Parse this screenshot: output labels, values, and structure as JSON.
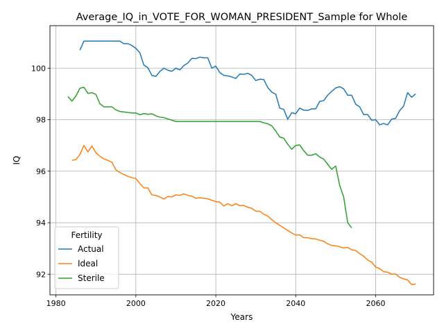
{
  "chart_data": {
    "type": "line",
    "title": "Average_IQ_in_VOTE_FOR_WOMAN_PRESIDENT_Sample for Whole",
    "xlabel": "Years",
    "ylabel": "IQ",
    "xlim": [
      1978.5,
      2074.5
    ],
    "ylim": [
      91.2,
      101.65
    ],
    "xticks": [
      1980,
      2000,
      2020,
      2040,
      2060
    ],
    "yticks": [
      92,
      94,
      96,
      98,
      100
    ],
    "grid": true,
    "legend": {
      "title": "Fertility",
      "position": "bottom-left"
    },
    "series": [
      {
        "name": "Actual",
        "color": "#1f77b4",
        "x": [
          1986,
          1987,
          1988,
          1989,
          1990,
          1991,
          1992,
          1993,
          1994,
          1995,
          1996,
          1997,
          1998,
          1999,
          2000,
          2001,
          2002,
          2003,
          2004,
          2005,
          2006,
          2007,
          2008,
          2009,
          2010,
          2011,
          2012,
          2013,
          2014,
          2015,
          2016,
          2017,
          2018,
          2019,
          2020,
          2021,
          2022,
          2023,
          2024,
          2025,
          2026,
          2027,
          2028,
          2029,
          2030,
          2031,
          2032,
          2033,
          2034,
          2035,
          2036,
          2037,
          2038,
          2039,
          2040,
          2041,
          2042,
          2043,
          2044,
          2045,
          2046,
          2047,
          2048,
          2049,
          2050,
          2051,
          2052,
          2053,
          2054,
          2055,
          2056,
          2057,
          2058,
          2059,
          2060,
          2061,
          2062,
          2063,
          2064,
          2065,
          2066,
          2067,
          2068,
          2069,
          2070
        ],
        "y": [
          100.7,
          101.05,
          101.05,
          101.05,
          101.05,
          101.05,
          101.05,
          101.05,
          101.05,
          101.05,
          101.05,
          100.95,
          100.95,
          100.88,
          100.77,
          100.6,
          100.12,
          100.02,
          99.72,
          99.68,
          99.87,
          100.0,
          99.92,
          99.88,
          100.0,
          99.93,
          100.1,
          100.2,
          100.38,
          100.37,
          100.43,
          100.4,
          100.4,
          100.0,
          100.08,
          99.83,
          99.72,
          99.7,
          99.66,
          99.6,
          99.77,
          99.76,
          99.8,
          99.72,
          99.52,
          99.57,
          99.56,
          99.25,
          99.07,
          98.99,
          98.45,
          98.4,
          98.02,
          98.27,
          98.23,
          98.45,
          98.37,
          98.36,
          98.42,
          98.42,
          98.71,
          98.74,
          98.95,
          99.1,
          99.23,
          99.28,
          99.2,
          98.95,
          98.95,
          98.6,
          98.5,
          98.2,
          98.2,
          97.98,
          98.0,
          97.8,
          97.85,
          97.8,
          98.02,
          98.05,
          98.35,
          98.53,
          99.05,
          98.87,
          99.0
        ]
      },
      {
        "name": "Ideal",
        "color": "#ff7f0e",
        "x": [
          1984,
          1985,
          1986,
          1987,
          1988,
          1989,
          1990,
          1991,
          1992,
          1993,
          1994,
          1995,
          1996,
          1997,
          1998,
          1999,
          2000,
          2001,
          2002,
          2003,
          2004,
          2005,
          2006,
          2007,
          2008,
          2009,
          2010,
          2011,
          2012,
          2013,
          2014,
          2015,
          2016,
          2017,
          2018,
          2019,
          2020,
          2021,
          2022,
          2023,
          2024,
          2025,
          2026,
          2027,
          2028,
          2029,
          2030,
          2031,
          2032,
          2033,
          2034,
          2035,
          2036,
          2037,
          2038,
          2039,
          2040,
          2041,
          2042,
          2043,
          2044,
          2045,
          2046,
          2047,
          2048,
          2049,
          2050,
          2051,
          2052,
          2053,
          2054,
          2055,
          2056,
          2057,
          2058,
          2059,
          2060,
          2061,
          2062,
          2063,
          2064,
          2065,
          2066,
          2067,
          2068,
          2069,
          2070
        ],
        "y": [
          96.42,
          96.45,
          96.65,
          97.0,
          96.75,
          96.98,
          96.72,
          96.58,
          96.48,
          96.42,
          96.35,
          96.05,
          95.95,
          95.87,
          95.8,
          95.75,
          95.72,
          95.52,
          95.35,
          95.35,
          95.08,
          95.06,
          95.0,
          94.92,
          95.02,
          95.0,
          95.08,
          95.06,
          95.12,
          95.06,
          95.03,
          94.95,
          94.97,
          94.95,
          94.93,
          94.87,
          94.82,
          94.8,
          94.65,
          94.74,
          94.66,
          94.74,
          94.66,
          94.67,
          94.6,
          94.56,
          94.45,
          94.45,
          94.33,
          94.26,
          94.12,
          94.0,
          93.9,
          93.8,
          93.7,
          93.6,
          93.52,
          93.53,
          93.42,
          93.42,
          93.38,
          93.37,
          93.32,
          93.28,
          93.18,
          93.12,
          93.1,
          93.07,
          93.02,
          93.04,
          92.95,
          92.92,
          92.8,
          92.7,
          92.55,
          92.47,
          92.28,
          92.22,
          92.1,
          92.08,
          92.0,
          92.01,
          91.88,
          91.82,
          91.78,
          91.6,
          91.62
        ]
      },
      {
        "name": "Sterile",
        "color": "#2ca02c",
        "x": [
          1983,
          1984,
          1985,
          1986,
          1987,
          1988,
          1989,
          1990,
          1991,
          1992,
          1993,
          1994,
          1995,
          1996,
          1997,
          1998,
          1999,
          2000,
          2001,
          2002,
          2003,
          2004,
          2005,
          2006,
          2007,
          2008,
          2009,
          2010,
          2011,
          2012,
          2013,
          2014,
          2015,
          2016,
          2017,
          2018,
          2019,
          2020,
          2021,
          2022,
          2023,
          2024,
          2025,
          2026,
          2027,
          2028,
          2029,
          2030,
          2031,
          2032,
          2033,
          2034,
          2035,
          2036,
          2037,
          2038,
          2039,
          2040,
          2041,
          2042,
          2043,
          2044,
          2045,
          2046,
          2047,
          2048,
          2049,
          2050,
          2051,
          2052,
          2053,
          2054
        ],
        "y": [
          98.9,
          98.72,
          98.92,
          99.22,
          99.26,
          99.02,
          99.05,
          98.98,
          98.62,
          98.5,
          98.5,
          98.5,
          98.38,
          98.32,
          98.3,
          98.28,
          98.26,
          98.26,
          98.19,
          98.24,
          98.21,
          98.23,
          98.15,
          98.1,
          98.08,
          98.03,
          97.98,
          97.93,
          97.93,
          97.93,
          97.93,
          97.93,
          97.93,
          97.93,
          97.93,
          97.93,
          97.93,
          97.93,
          97.93,
          97.93,
          97.93,
          97.93,
          97.93,
          97.93,
          97.93,
          97.93,
          97.93,
          97.93,
          97.93,
          97.88,
          97.84,
          97.76,
          97.56,
          97.33,
          97.28,
          97.05,
          96.85,
          97.0,
          97.02,
          96.8,
          96.62,
          96.62,
          96.68,
          96.55,
          96.47,
          96.27,
          96.07,
          96.2,
          95.45,
          95.0,
          94.0,
          93.8
        ]
      }
    ]
  }
}
